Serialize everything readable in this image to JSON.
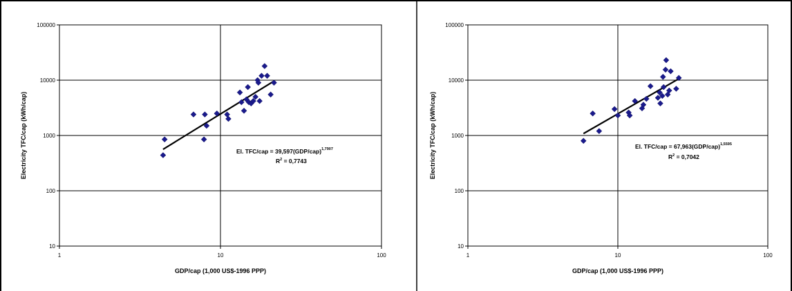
{
  "chart_data": [
    {
      "type": "scatter",
      "title": "",
      "xlabel": "GDP/cap (1,000 US$-1996 PPP)",
      "ylabel": "Electricity TFC/cap (kWh/cap)",
      "x_scale": "log",
      "y_scale": "log",
      "xlim": [
        1,
        100
      ],
      "ylim": [
        10,
        100000
      ],
      "x_ticks": [
        "1",
        "10",
        "100"
      ],
      "y_ticks": [
        "10",
        "100",
        "1000",
        "10000",
        "100000"
      ],
      "grid": "major",
      "legend": "none",
      "marker_color": "#1a1a8c",
      "trendline_color": "#000000",
      "series": [
        {
          "points": [
            [
              4.4,
              440
            ],
            [
              4.5,
              850
            ],
            [
              6.8,
              2400
            ],
            [
              7.9,
              850
            ],
            [
              8.0,
              2400
            ],
            [
              8.2,
              1500
            ],
            [
              9.5,
              2500
            ],
            [
              11.0,
              2400
            ],
            [
              11.2,
              2000
            ],
            [
              13.2,
              6000
            ],
            [
              13.5,
              4000
            ],
            [
              14.0,
              2800
            ],
            [
              14.5,
              4500
            ],
            [
              14.8,
              7500
            ],
            [
              15.0,
              4000
            ],
            [
              15.5,
              3800
            ],
            [
              16.0,
              4200
            ],
            [
              16.5,
              5000
            ],
            [
              17.0,
              10000
            ],
            [
              17.2,
              9000
            ],
            [
              17.5,
              4200
            ],
            [
              18.0,
              12000
            ],
            [
              18.8,
              18000
            ],
            [
              19.5,
              12000
            ],
            [
              20.5,
              5500
            ],
            [
              21.5,
              9000
            ]
          ]
        }
      ],
      "trendline": {
        "coef": 39.597,
        "exponent": 1.7907,
        "x_range": [
          4.4,
          21.5
        ]
      },
      "annotation": {
        "equation_main": "El. TFC/cap = 39,597(GDP/cap)",
        "equation_exp": "1,7907",
        "r2_main": "R",
        "r2_sup": "2",
        "r2_rest": " = 0,7743"
      }
    },
    {
      "type": "scatter",
      "title": "",
      "xlabel": "GDP/cap (1,000 US$-1996 PPP)",
      "ylabel": "Electricity TFC/cap (kWh/cap)",
      "x_scale": "log",
      "y_scale": "log",
      "xlim": [
        1,
        100
      ],
      "ylim": [
        10,
        100000
      ],
      "x_ticks": [
        "1",
        "10",
        "100"
      ],
      "y_ticks": [
        "10",
        "100",
        "1000",
        "10000",
        "100000"
      ],
      "grid": "major",
      "legend": "none",
      "marker_color": "#1a1a8c",
      "trendline_color": "#000000",
      "series": [
        {
          "points": [
            [
              5.9,
              800
            ],
            [
              6.8,
              2500
            ],
            [
              7.5,
              1200
            ],
            [
              9.5,
              3000
            ],
            [
              10.0,
              2300
            ],
            [
              11.8,
              2600
            ],
            [
              12.0,
              2300
            ],
            [
              13.0,
              4200
            ],
            [
              14.5,
              3100
            ],
            [
              14.8,
              3600
            ],
            [
              15.5,
              4600
            ],
            [
              16.5,
              7800
            ],
            [
              18.5,
              4800
            ],
            [
              19.0,
              6000
            ],
            [
              19.2,
              3800
            ],
            [
              19.8,
              5200
            ],
            [
              20.0,
              11500
            ],
            [
              20.2,
              7500
            ],
            [
              20.8,
              15500
            ],
            [
              21.0,
              23000
            ],
            [
              21.5,
              5500
            ],
            [
              22.0,
              6500
            ],
            [
              22.5,
              14500
            ],
            [
              24.5,
              7000
            ],
            [
              25.5,
              11000
            ]
          ]
        }
      ],
      "trendline": {
        "coef": 67.963,
        "exponent": 1.5595,
        "x_range": [
          5.9,
          25.5
        ]
      },
      "annotation": {
        "equation_main": "El. TFC/cap = 67,963(GDP/cap)",
        "equation_exp": "1,5595",
        "r2_main": "R",
        "r2_sup": "2",
        "r2_rest": " = 0,7042"
      }
    }
  ]
}
